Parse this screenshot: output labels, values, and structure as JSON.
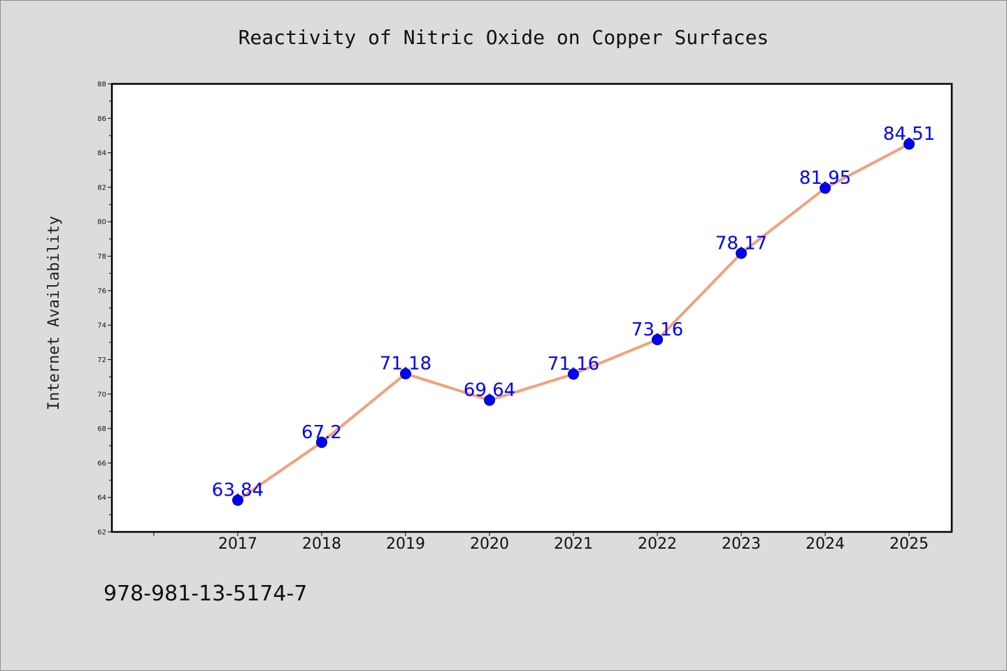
{
  "chart_data": {
    "type": "line",
    "title": "Reactivity of Nitric Oxide on Copper Surfaces",
    "xlabel": "",
    "ylabel": "Internet Availability",
    "categories": [
      "2017",
      "2018",
      "2019",
      "2020",
      "2021",
      "2022",
      "2023",
      "2024",
      "2025"
    ],
    "values": [
      63.84,
      67.2,
      71.18,
      69.64,
      71.16,
      73.16,
      78.17,
      81.95,
      84.51
    ],
    "data_labels": [
      "63.84",
      "67.2",
      "71.18",
      "69.64",
      "71.16",
      "73.16",
      "78.17",
      "81.95",
      "84.51"
    ],
    "ylim": [
      62,
      88
    ],
    "yticks": [
      "62",
      "64",
      "66",
      "68",
      "70",
      "72",
      "74",
      "76",
      "78",
      "80",
      "82",
      "84",
      "86",
      "88"
    ],
    "grid": false,
    "legend": "none",
    "colors": {
      "line": "#f4a07c",
      "marker": "#0000ff",
      "marker_edge": "#000080",
      "data_label": "#0000ff",
      "plot_background": "#ffffff",
      "figure_background": "#dcdcdc"
    }
  },
  "footnote": "978-981-13-5174-7"
}
